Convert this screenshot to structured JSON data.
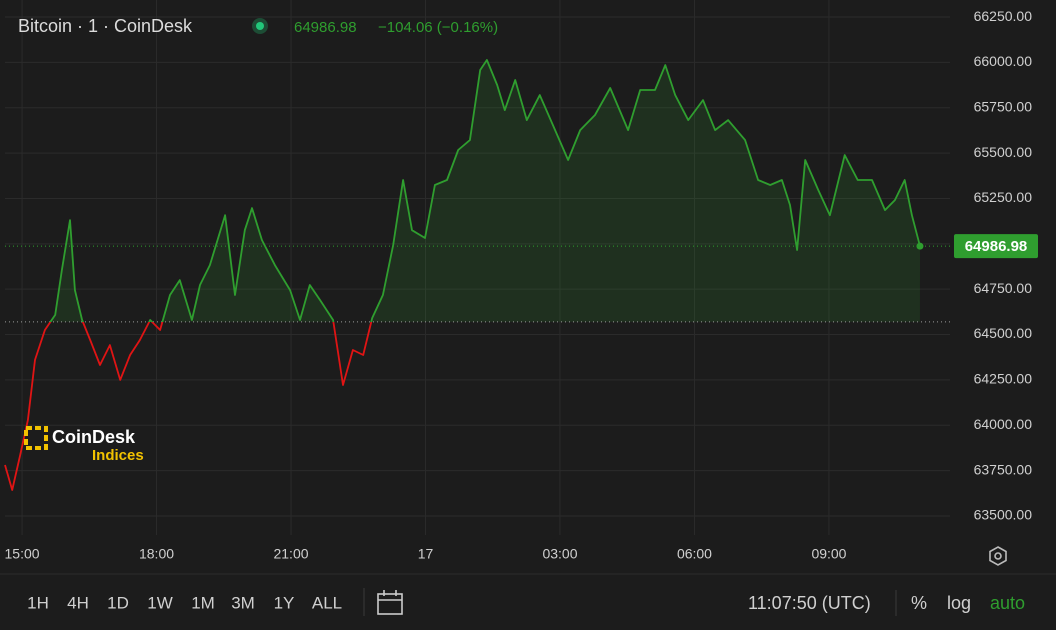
{
  "chart_data": {
    "type": "line",
    "title": "Bitcoin · 1 · CoinDesk",
    "last_price": 64986.98,
    "change": "−104.06 (−0.16%)",
    "baseline": 64570,
    "up_color": "#2f9e2f",
    "down_color": "#e01414",
    "grid": true,
    "x": [
      14.62,
      14.78,
      14.96,
      15.13,
      15.29,
      15.51,
      15.74,
      15.89,
      16.07,
      16.18,
      16.34,
      16.52,
      16.74,
      16.96,
      17.19,
      17.41,
      17.63,
      17.86,
      18.08,
      18.3,
      18.52,
      18.79,
      18.97,
      19.19,
      19.53,
      19.75,
      19.97,
      20.13,
      20.35,
      20.64,
      20.98,
      21.2,
      21.42,
      21.65,
      21.94,
      22.16,
      22.38,
      22.61,
      22.81,
      23.05,
      23.28,
      23.5,
      23.7,
      23.99,
      24.21,
      24.48,
      24.73,
      24.99,
      25.22,
      25.37,
      25.6,
      25.77,
      26.0,
      26.26,
      26.55,
      26.89,
      27.18,
      27.45,
      27.78,
      28.12,
      28.52,
      28.79,
      29.12,
      29.35,
      29.57,
      29.86,
      30.19,
      30.46,
      30.75,
      31.13,
      31.42,
      31.69,
      31.95,
      32.13,
      32.29,
      32.47,
      32.76,
      33.02,
      33.35,
      33.64,
      33.96,
      34.25,
      34.47,
      34.69,
      34.85,
      35.03
    ],
    "values": [
      63781,
      63643,
      63836,
      64029,
      64360,
      64525,
      64608,
      64856,
      65131,
      64745,
      64580,
      64470,
      64332,
      64442,
      64250,
      64387,
      64470,
      64580,
      64525,
      64718,
      64800,
      64580,
      64773,
      64883,
      65158,
      64718,
      65075,
      65197,
      65021,
      64883,
      64745,
      64580,
      64773,
      64690,
      64580,
      64222,
      64415,
      64387,
      64591,
      64718,
      64994,
      65352,
      65075,
      65032,
      65324,
      65352,
      65517,
      65572,
      65958,
      66013,
      65875,
      65737,
      65903,
      65682,
      65820,
      65627,
      65462,
      65627,
      65710,
      65859,
      65627,
      65848,
      65848,
      65985,
      65820,
      65682,
      65792,
      65627,
      65682,
      65572,
      65352,
      65324,
      65352,
      65214,
      64966,
      65462,
      65297,
      65158,
      65489,
      65352,
      65352,
      65186,
      65241,
      65352,
      65158,
      64986.98
    ],
    "xlim": [
      14.62,
      35.7
    ],
    "ylim": [
      63395,
      66344
    ],
    "xticks": [
      {
        "value": 15,
        "label": "15:00"
      },
      {
        "value": 18,
        "label": "18:00"
      },
      {
        "value": 21,
        "label": "21:00"
      },
      {
        "value": 24,
        "label": "17"
      },
      {
        "value": 27,
        "label": "03:00"
      },
      {
        "value": 30,
        "label": "06:00"
      },
      {
        "value": 33,
        "label": "09:00"
      }
    ],
    "yticks": [
      {
        "value": 63500,
        "label": "63500.00"
      },
      {
        "value": 63750,
        "label": "63750.00"
      },
      {
        "value": 64000,
        "label": "64000.00"
      },
      {
        "value": 64250,
        "label": "64250.00"
      },
      {
        "value": 64500,
        "label": "64500.00"
      },
      {
        "value": 64750,
        "label": "64750.00"
      },
      {
        "value": 65000,
        "label": "65000.00"
      },
      {
        "value": 65250,
        "label": "65250.00"
      },
      {
        "value": 65500,
        "label": "65500.00"
      },
      {
        "value": 65750,
        "label": "65750.00"
      },
      {
        "value": 66000,
        "label": "66000.00"
      },
      {
        "value": 66250,
        "label": "66250.00"
      }
    ]
  },
  "watermark": {
    "brand": "CoinDesk",
    "sub": "Indices"
  },
  "toolbar": {
    "ranges": [
      "1H",
      "4H",
      "1D",
      "1W",
      "1M",
      "3M",
      "1Y",
      "ALL"
    ],
    "time": "11:07:50 (UTC)",
    "percent": "%",
    "log": "log",
    "auto": "auto"
  }
}
